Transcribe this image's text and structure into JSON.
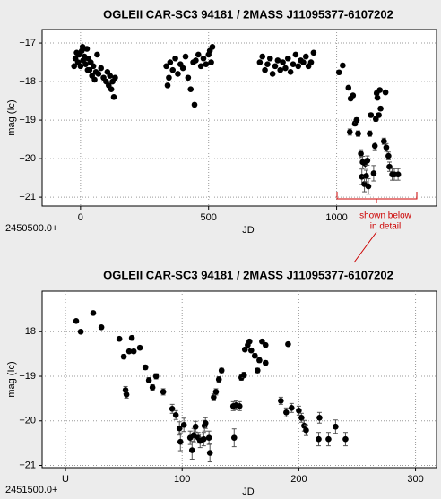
{
  "chart_data": [
    {
      "type": "scatter",
      "title": "OGLEII CAR-SC3 94181 / 2MASS J11095377-6107202",
      "x_label": "JD",
      "y_label": "mag (Ic)",
      "x_offset_label": "2450500.0+",
      "xlim": [
        -150,
        1390
      ],
      "ylim": [
        16.65,
        21.23
      ],
      "y_inverted": true,
      "grid": true,
      "color": "#000000",
      "xticks": [
        0,
        500,
        1000
      ],
      "yticks": [
        {
          "value": 17,
          "label": "+17"
        },
        {
          "value": 18,
          "label": "+18"
        },
        {
          "value": 19,
          "label": "+19"
        },
        {
          "value": 20,
          "label": "+20"
        },
        {
          "value": 21,
          "label": "+21"
        }
      ],
      "annotation": {
        "lines": [
          "shown below",
          "in detail"
        ],
        "color": "#cc0000"
      },
      "series": [
        {
          "x": [
            -20,
            -15,
            -10,
            -5,
            0,
            5,
            10,
            15,
            20,
            25,
            30,
            35,
            40,
            45,
            50,
            55,
            60,
            65,
            70,
            80,
            90,
            100,
            105,
            110,
            115,
            120,
            125,
            130,
            135,
            -25,
            8,
            28,
            335,
            340,
            345,
            350,
            360,
            370,
            380,
            390,
            400,
            410,
            420,
            430,
            440,
            445,
            450,
            460,
            470,
            480,
            490,
            500,
            505,
            510,
            515,
            700,
            710,
            720,
            730,
            740,
            750,
            760,
            770,
            780,
            790,
            800,
            810,
            820,
            830,
            840,
            850,
            860,
            870,
            880,
            890,
            900,
            910,
            1009.2,
            1023.8,
            1046.2,
            1051.5,
            1054.6,
            1063.8,
            1071.5,
            1077.7,
            1083.8,
            1094.6,
            1098.5,
            1101.5,
            1108.5,
            1111.5,
            1115.4,
            1120,
            1123.8,
            1129,
            1133.8,
            1144.6,
            1149.2,
            1153,
            1156.2,
            1159.2,
            1164.6,
            1168.5,
            1171.5,
            1184.6,
            1190.8,
            1193.8,
            1202.3,
            1206.2,
            1217,
            1225.4,
            1240
          ],
          "values": [
            17.4,
            17.25,
            17.5,
            17.3,
            17.6,
            17.2,
            17.45,
            17.35,
            17.55,
            17.15,
            17.4,
            17.7,
            17.5,
            17.85,
            17.6,
            17.95,
            17.75,
            17.3,
            17.8,
            17.65,
            17.9,
            18.0,
            17.75,
            18.1,
            17.85,
            18.2,
            18.0,
            18.4,
            17.9,
            17.6,
            17.1,
            17.7,
            17.6,
            18.1,
            17.9,
            17.5,
            17.7,
            17.4,
            17.8,
            17.55,
            17.65,
            17.35,
            17.9,
            18.2,
            17.5,
            18.6,
            17.45,
            17.3,
            17.6,
            17.4,
            17.55,
            17.3,
            17.2,
            17.5,
            17.1,
            17.5,
            17.35,
            17.7,
            17.55,
            17.4,
            17.8,
            17.6,
            17.45,
            17.7,
            17.5,
            17.65,
            17.4,
            17.75,
            17.55,
            17.3,
            17.6,
            17.45,
            17.5,
            17.35,
            17.6,
            17.5,
            17.25,
            17.76,
            17.58,
            18.16,
            19.31,
            18.44,
            18.36,
            19.09,
            19.0,
            19.35,
            19.87,
            20.47,
            20.09,
            20.66,
            20.13,
            20.45,
            20.05,
            20.72,
            19.35,
            18.87,
            20.38,
            19.67,
            18.97,
            18.3,
            18.42,
            18.87,
            18.22,
            18.7,
            19.55,
            18.28,
            19.71,
            19.93,
            20.21,
            20.41,
            20.41,
            20.41
          ],
          "errors": [
            null,
            null,
            null,
            null,
            null,
            null,
            null,
            null,
            null,
            null,
            null,
            null,
            null,
            null,
            null,
            null,
            null,
            null,
            null,
            null,
            null,
            null,
            null,
            null,
            null,
            null,
            null,
            null,
            null,
            null,
            null,
            null,
            null,
            null,
            null,
            null,
            null,
            null,
            null,
            null,
            null,
            null,
            null,
            null,
            null,
            null,
            null,
            null,
            null,
            null,
            null,
            null,
            null,
            null,
            null,
            null,
            null,
            null,
            null,
            null,
            null,
            null,
            null,
            null,
            null,
            null,
            null,
            null,
            null,
            null,
            null,
            null,
            null,
            null,
            null,
            null,
            null,
            0.03,
            0.03,
            0.03,
            0.08,
            0.04,
            0.04,
            0.06,
            0.06,
            0.07,
            0.1,
            0.2,
            0.15,
            0.2,
            0.12,
            0.15,
            0.12,
            0.2,
            0.07,
            0.05,
            0.2,
            0.1,
            0.06,
            0.04,
            0.04,
            0.05,
            0.04,
            0.05,
            0.08,
            0.04,
            0.1,
            0.1,
            0.12,
            0.15,
            0.15,
            0.15
          ]
        }
      ]
    },
    {
      "type": "scatter",
      "title": "OGLEII CAR-SC3 94181 / 2MASS J11095377-6107202",
      "x_label": "JD",
      "y_label": "mag (Ic)",
      "x_offset_label": "2451500.0+",
      "xlim": [
        -20,
        318
      ],
      "ylim": [
        17.09,
        21.05
      ],
      "y_inverted": true,
      "grid": true,
      "color": "#000000",
      "xticks": [
        {
          "value": 0,
          "label": "U"
        },
        100,
        200,
        300
      ],
      "yticks": [
        {
          "value": 18,
          "label": "+18"
        },
        {
          "value": 19,
          "label": "+19"
        },
        {
          "value": 20,
          "label": "+20"
        },
        {
          "value": 21,
          "label": "+21"
        }
      ],
      "series": [
        {
          "x": [
            9.2,
            13.1,
            23.8,
            30.8,
            46.2,
            50,
            51.5,
            52.3,
            54.6,
            58.5,
            56.9,
            63.8,
            68.5,
            71.5,
            74.6,
            77.7,
            83.8,
            91.5,
            94.6,
            97.7,
            98.5,
            101.5,
            106.9,
            108.5,
            110,
            111.5,
            113.8,
            115.4,
            118.5,
            119.2,
            120,
            123,
            123.8,
            127,
            129,
            131.5,
            133.8,
            143.8,
            144.6,
            146.2,
            149.2,
            150.8,
            153,
            153.8,
            156.2,
            157.7,
            159.2,
            162.3,
            164.6,
            166.2,
            168.5,
            171.5,
            171.5,
            184.6,
            189.2,
            190.8,
            193.8,
            200,
            202.3,
            204.6,
            206.2,
            217,
            217.7,
            225.4,
            231.5,
            240
          ],
          "values": [
            17.76,
            18.0,
            17.58,
            17.9,
            18.16,
            18.56,
            19.31,
            19.41,
            18.44,
            18.44,
            18.14,
            18.36,
            18.8,
            19.09,
            19.25,
            19.0,
            19.35,
            19.73,
            19.87,
            20.17,
            20.47,
            20.09,
            20.38,
            20.66,
            20.32,
            20.13,
            20.38,
            20.45,
            20.41,
            20.11,
            20.05,
            20.38,
            20.72,
            19.47,
            19.35,
            19.07,
            18.87,
            19.67,
            20.38,
            19.65,
            19.67,
            19.03,
            18.97,
            18.4,
            18.3,
            18.22,
            18.42,
            18.54,
            18.87,
            18.64,
            18.22,
            18.3,
            18.7,
            19.55,
            19.81,
            18.28,
            19.71,
            19.77,
            19.93,
            20.11,
            20.21,
            20.41,
            19.93,
            20.41,
            20.13,
            20.41
          ],
          "errors": [
            0.03,
            0.03,
            0.03,
            0.03,
            0.03,
            0.05,
            0.08,
            0.08,
            0.04,
            0.04,
            0.04,
            0.04,
            0.05,
            0.06,
            0.06,
            0.06,
            0.07,
            0.1,
            0.1,
            0.15,
            0.2,
            0.15,
            0.15,
            0.2,
            0.15,
            0.12,
            0.12,
            0.15,
            0.15,
            0.12,
            0.12,
            0.15,
            0.2,
            0.08,
            0.07,
            0.06,
            0.05,
            0.1,
            0.2,
            0.1,
            0.1,
            0.06,
            0.06,
            0.04,
            0.04,
            0.04,
            0.04,
            0.05,
            0.05,
            0.05,
            0.04,
            0.04,
            0.05,
            0.08,
            0.1,
            0.04,
            0.1,
            0.1,
            0.1,
            0.12,
            0.12,
            0.15,
            0.12,
            0.15,
            0.15,
            0.15
          ]
        }
      ]
    }
  ]
}
